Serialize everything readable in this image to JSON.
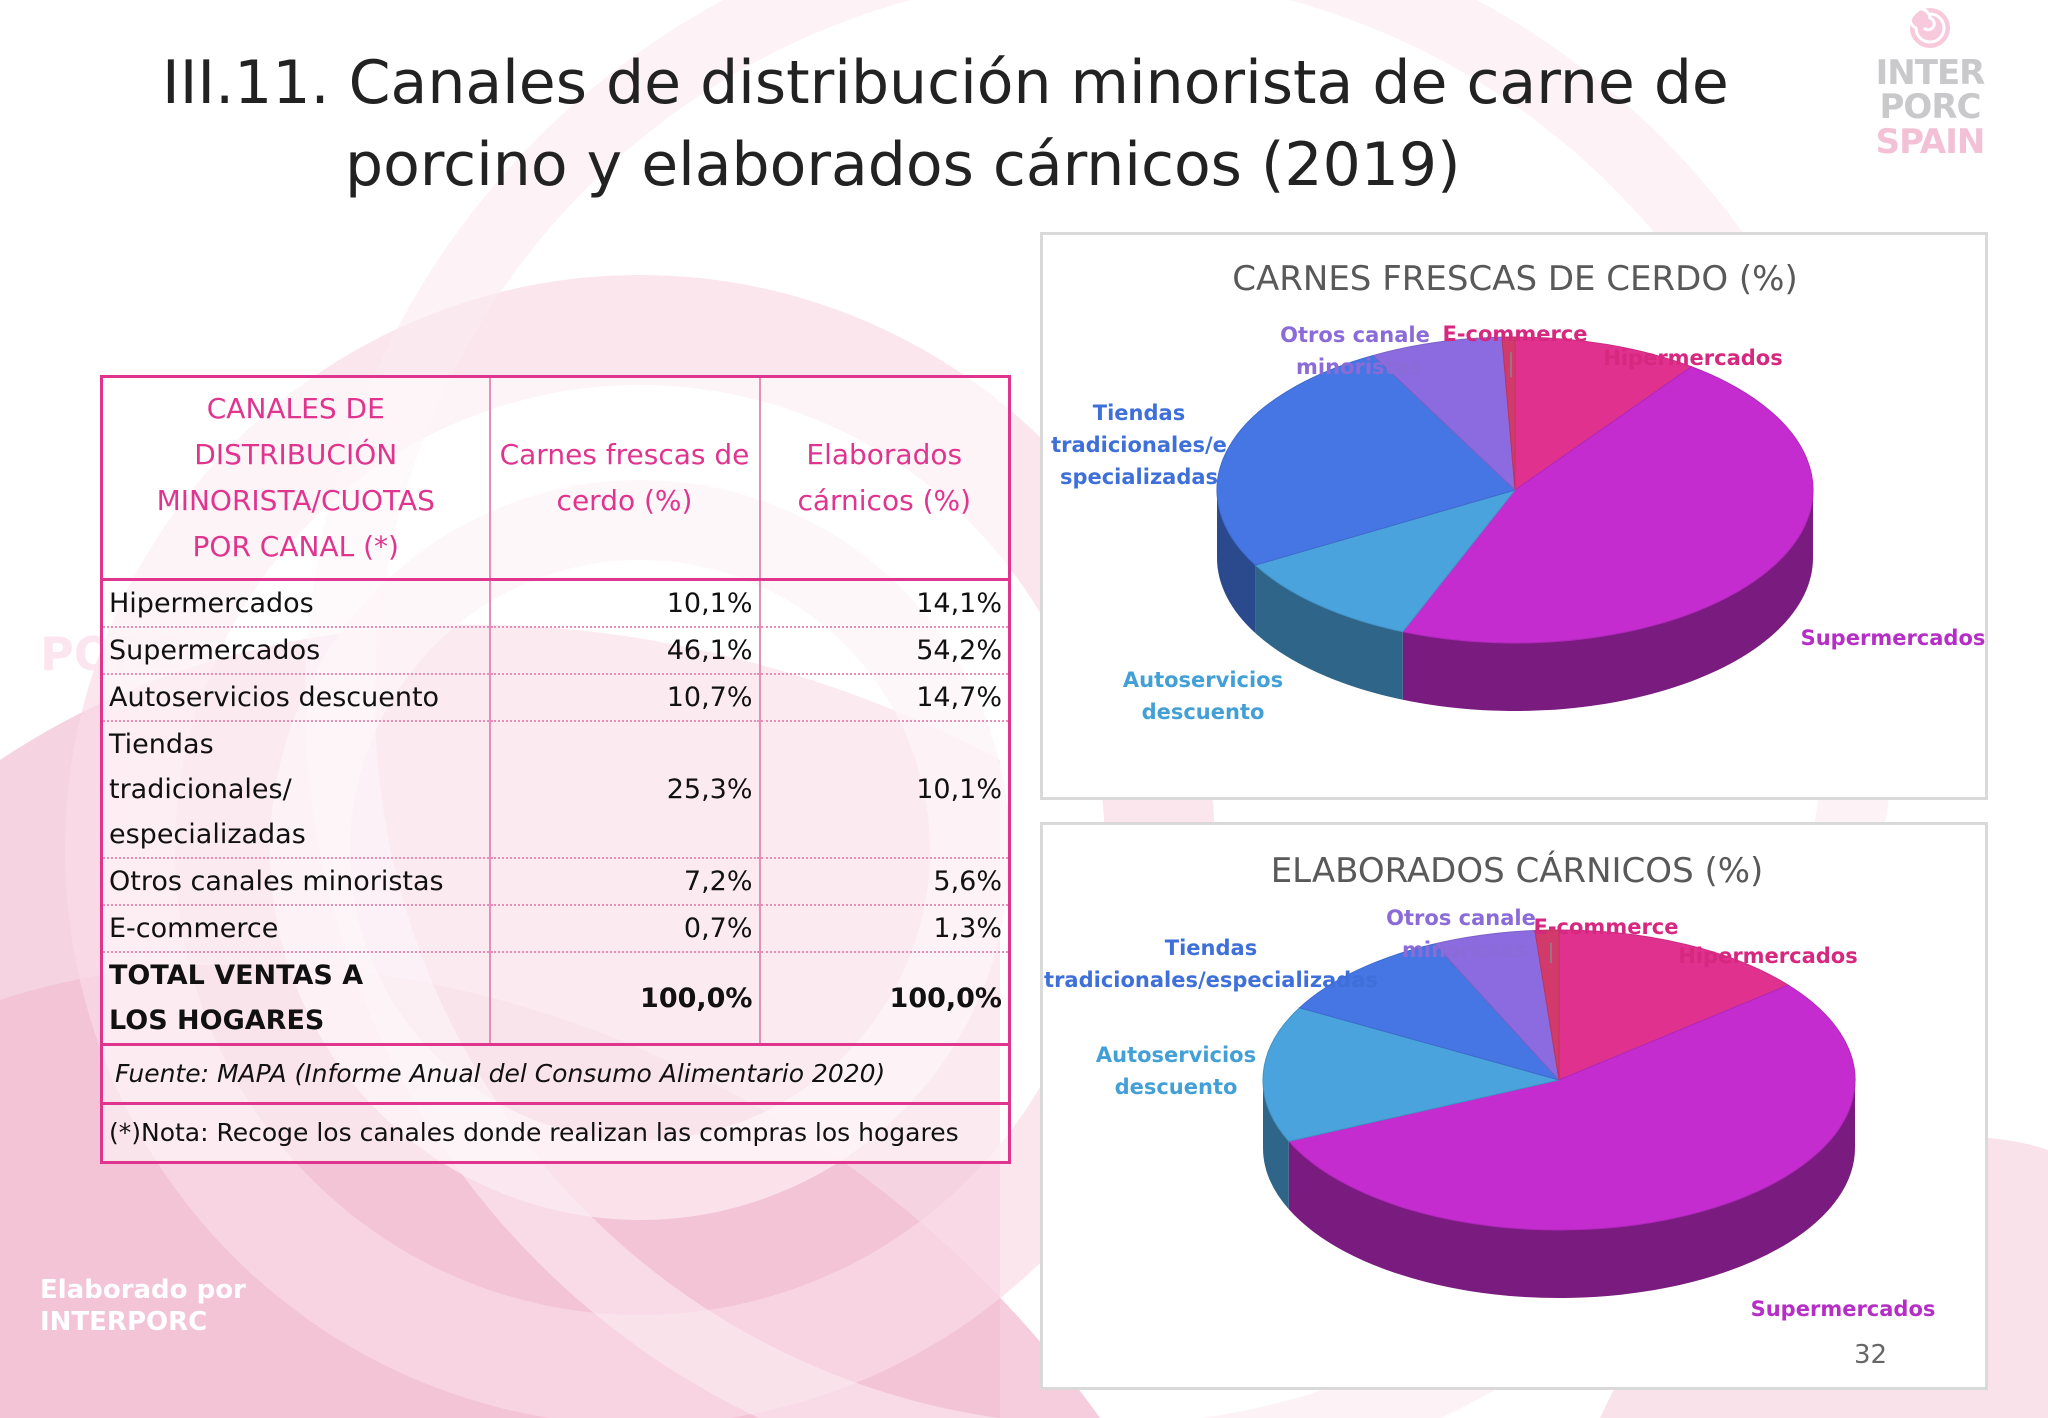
{
  "title": {
    "line1": "III.11. Canales de distribución minorista de carne de",
    "line2": "porcino y elaborados cárnicos (2019)"
  },
  "logo": {
    "line1": "INTER",
    "line2": "PORC",
    "line3": "SPAIN",
    "icon": "swirl-icon"
  },
  "watermark": {
    "line1": "Elaborado por",
    "line2": "INTERPORC",
    "side": "PORC"
  },
  "table": {
    "headers": [
      "CANALES DE DISTRIBUCIÓN MINORISTA/CUOTAS POR CANAL (*)",
      "Carnes frescas de cerdo (%)",
      "Elaborados cárnicos (%)"
    ],
    "rows": [
      [
        "Hipermercados",
        "10,1%",
        "14,1%"
      ],
      [
        "Supermercados",
        "46,1%",
        "54,2%"
      ],
      [
        "Autoservicios descuento",
        "10,7%",
        "14,7%"
      ],
      [
        "Tiendas tradicionales/ especializadas",
        "25,3%",
        "10,1%"
      ],
      [
        "Otros canales minoristas",
        "7,2%",
        "5,6%"
      ],
      [
        "E-commerce",
        "0,7%",
        "1,3%"
      ]
    ],
    "total": [
      "TOTAL VENTAS A LOS HOGARES",
      "100,0%",
      "100,0%"
    ],
    "source": "Fuente: MAPA (Informe Anual del Consumo Alimentario 2020)",
    "note": "(*)Nota: Recoge los canales donde realizan las compras los hogares"
  },
  "chart_data": [
    {
      "type": "pie",
      "title": "CARNES FRESCAS DE CERDO (%)",
      "categories": [
        "Hipermercados",
        "Supermercados",
        "Autoservicios descuento",
        "Tiendas tradicionales/especializadas",
        "Otros canales minoristas",
        "E-commerce"
      ],
      "labels": [
        "Hipermercados",
        "Supermercados",
        "Autoservicios descuento",
        "Tiendas tradicionales/e specializadas",
        "Otros canales minoristas",
        "E-commerce"
      ],
      "values": [
        10.1,
        46.1,
        10.7,
        25.3,
        7.2,
        0.7
      ],
      "colors": [
        "#e0318f",
        "#c42ccf",
        "#4aa3dc",
        "#4676e3",
        "#8b6bdf",
        "#d13a6a"
      ],
      "label_colors": [
        "#d6287f",
        "#b52fc7",
        "#43a0d6",
        "#3f6fd9",
        "#8a6bd8",
        "#d6287f"
      ],
      "style": "3d",
      "legend": "none"
    },
    {
      "type": "pie",
      "title": "ELABORADOS CÁRNICOS (%)",
      "categories": [
        "Hipermercados",
        "Supermercados",
        "Autoservicios descuento",
        "Tiendas tradicionales/especializadas",
        "Otros canales minoristas",
        "E-commerce"
      ],
      "labels": [
        "Hipermercados",
        "Supermercados",
        "Autoservicios descuento",
        "Tiendas tradicionales/especializadas",
        "Otros canales minoristas",
        "E-commerce"
      ],
      "values": [
        14.1,
        54.2,
        14.7,
        10.1,
        5.6,
        1.3
      ],
      "colors": [
        "#e0318f",
        "#c42ccf",
        "#4aa3dc",
        "#4676e3",
        "#8b6bdf",
        "#d13a6a"
      ],
      "label_colors": [
        "#d6287f",
        "#b52fc7",
        "#43a0d6",
        "#3f6fd9",
        "#8a6bd8",
        "#d6287f"
      ],
      "style": "3d",
      "legend": "none"
    }
  ],
  "page_number": "32"
}
